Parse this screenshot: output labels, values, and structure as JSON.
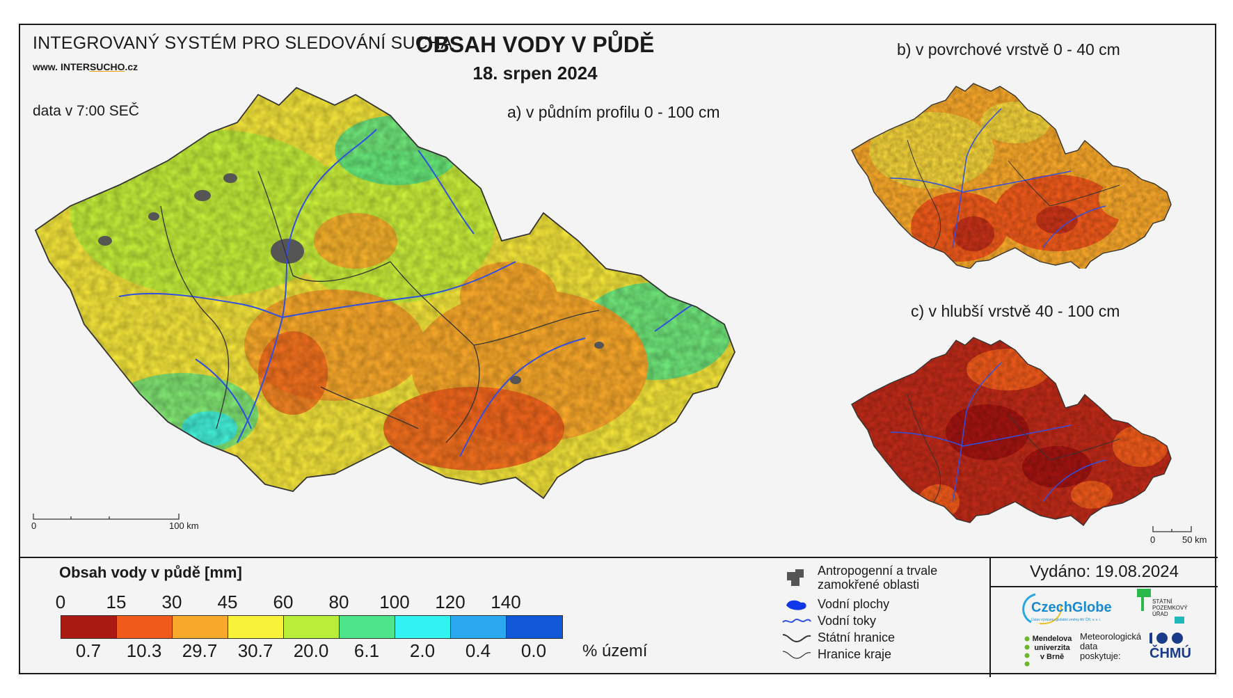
{
  "header": {
    "system_title": "INTEGROVANÝ SYSTÉM PRO SLEDOVÁNÍ SUCHA",
    "www_prefix": "www.",
    "www_inter": "INTER",
    "www_sucho": "SUCHO",
    "www_suffix": ".cz",
    "data_time": "data v 7:00 SEČ",
    "main_title": "OBSAH VODY V PŮDĚ",
    "date": "18. srpen 2024"
  },
  "panels": {
    "a": {
      "label": "a) v půdním profilu 0 - 100 cm"
    },
    "b": {
      "label": "b) v povrchové vrstvě 0 - 40 cm"
    },
    "c": {
      "label": "c) v hlubší vrstvě 40 - 100 cm"
    }
  },
  "scale_main": {
    "start": "0",
    "end": "100 km"
  },
  "scale_small": {
    "start": "0",
    "end": "50 km"
  },
  "legend": {
    "title": "Obsah vody v půdě  [mm]",
    "ticks": [
      "0",
      "15",
      "30",
      "45",
      "60",
      "80",
      "100",
      "120",
      "140"
    ],
    "colors": [
      "#a81a12",
      "#f05a1a",
      "#f8a82a",
      "#f8f23a",
      "#b8ee3a",
      "#4ee58a",
      "#32f2f2",
      "#2aa8f0",
      "#1058d8"
    ],
    "percentages": [
      "0.7",
      "10.3",
      "29.7",
      "30.7",
      "20.0",
      "6.1",
      "2.0",
      "0.4",
      "0.0"
    ],
    "pct_unit": "% území"
  },
  "symbols": {
    "urban": "Antropogenní a trvale zamokřené oblasti",
    "water_bodies": "Vodní plochy",
    "rivers": "Vodní toky",
    "state_border": "Státní hranice",
    "region_border": "Hranice kraje"
  },
  "footer": {
    "issued": "Vydáno: 19.08.2024",
    "czechglobe": "CzechGlobe",
    "czechglobe_sub": "Ústav výzkumu globální změny AV ČR, v. v. i.",
    "spu": "STÁTNÍ POZEMKOVÝ ÚŘAD",
    "mendelu_1": "Mendelova",
    "mendelu_2": "univerzita",
    "mendelu_3": "v Brně",
    "meteo_1": "Meteorologická",
    "meteo_2": "data",
    "meteo_3": "poskytuje:",
    "chmu": "ČHMÚ"
  }
}
